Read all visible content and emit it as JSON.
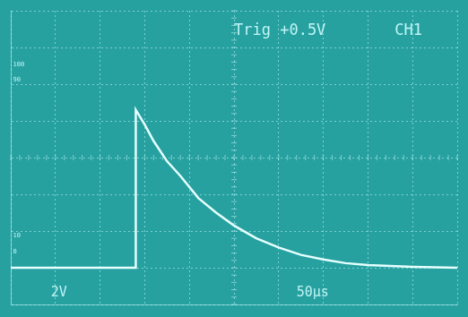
{
  "chart_data": {
    "type": "line",
    "x": [
      0,
      140,
      140,
      150,
      160,
      175,
      190,
      210,
      230,
      250,
      275,
      300,
      325,
      350,
      375,
      400,
      450,
      500
    ],
    "values": [
      -6,
      -6,
      2.6,
      1.8,
      0.9,
      -0.2,
      -1.0,
      -2.2,
      -3.0,
      -3.7,
      -4.4,
      -4.9,
      -5.3,
      -5.55,
      -5.75,
      -5.85,
      -5.95,
      -6
    ],
    "color": "#e6ffff",
    "marker": "none",
    "line_style": "solid",
    "xlim": [
      0,
      500
    ],
    "xticks": [
      0,
      50,
      100,
      150,
      200,
      250,
      300,
      350,
      400,
      450,
      500
    ],
    "ylim": [
      -8,
      8
    ],
    "yticks": [
      -8,
      -6,
      -4,
      -2,
      0,
      2,
      4,
      6,
      8
    ],
    "grid": true,
    "tick_labels": false,
    "annotations": [
      "Trig +0.5V",
      "CH1",
      "2V",
      "50µs",
      "100",
      "90",
      "10",
      "0"
    ]
  }
}
